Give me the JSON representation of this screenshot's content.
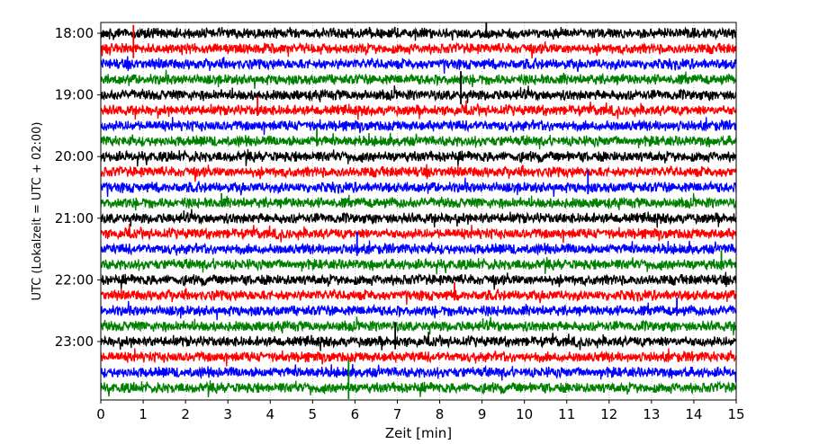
{
  "chart_data": {
    "type": "line",
    "title": "",
    "xlabel": "Zeit  [min]",
    "ylabel": "UTC (Lokalzeit = UTC + 02:00)",
    "xlim": [
      0,
      15
    ],
    "x_ticks": [
      "0",
      "1",
      "2",
      "3",
      "4",
      "5",
      "6",
      "7",
      "8",
      "9",
      "10",
      "11",
      "12",
      "13",
      "14",
      "15"
    ],
    "y_ticks": [
      "18:00",
      "19:00",
      "20:00",
      "21:00",
      "22:00",
      "23:00"
    ],
    "grid": "vertical dotted",
    "trace_interval_min": 15,
    "trace_count": 24,
    "trace_colors": [
      "#000000",
      "#ff0000",
      "#0000ff",
      "#008000"
    ],
    "events": [
      {
        "trace": 1,
        "minute": 0.77,
        "amplitude": 2.2
      },
      {
        "trace": 0,
        "minute": 9.1,
        "amplitude": 1.0
      },
      {
        "trace": 4,
        "minute": 8.5,
        "amplitude": 2.2
      },
      {
        "trace": 5,
        "minute": 3.7,
        "amplitude": 1.3
      },
      {
        "trace": 7,
        "minute": 5.1,
        "amplitude": 1.2
      },
      {
        "trace": 10,
        "minute": 11.5,
        "amplitude": 1.6
      },
      {
        "trace": 11,
        "minute": 2.85,
        "amplitude": 0.9
      },
      {
        "trace": 14,
        "minute": 6.05,
        "amplitude": 1.6
      },
      {
        "trace": 15,
        "minute": 14.65,
        "amplitude": 1.3
      },
      {
        "trace": 17,
        "minute": 8.35,
        "amplitude": 1.2
      },
      {
        "trace": 18,
        "minute": 13.6,
        "amplitude": 1.2
      },
      {
        "trace": 20,
        "minute": 6.95,
        "amplitude": 1.8
      },
      {
        "trace": 23,
        "minute": 5.85,
        "amplitude": 2.6
      }
    ]
  }
}
